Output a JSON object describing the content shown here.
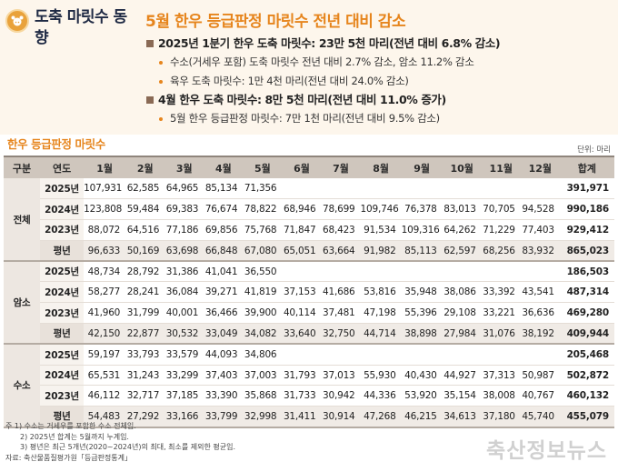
{
  "side_title": "도축 마릿수 동향",
  "main_title": "5월 한우 등급판정 마릿수 전년 대비 감소",
  "bullets": [
    {
      "level": 1,
      "text": "2025년 1분기 한우 도축 마릿수: 23만 5천 마리(전년 대비 6.8% 감소)"
    },
    {
      "level": 2,
      "text": "수소(거세우 포함) 도축 마릿수 전년 대비 2.7% 감소, 암소 11.2% 감소"
    },
    {
      "level": 2,
      "text": "육우 도축 마릿수: 1만 4천 마리(전년 대비 24.0% 감소)"
    },
    {
      "level": 1,
      "text": "4월 한우 도축 마릿수: 8만 5천 마리(전년 대비 11.0% 증가)"
    },
    {
      "level": 2,
      "text": "5월 한우 등급판정 마릿수: 7만 1천 마리(전년 대비 9.5% 감소)"
    }
  ],
  "table": {
    "title": "한우 등급판정 마릿수",
    "unit": "단위: 마리",
    "headers": [
      "구분",
      "연도",
      "1월",
      "2월",
      "3월",
      "4월",
      "5월",
      "6월",
      "7월",
      "8월",
      "9월",
      "10월",
      "11월",
      "12월",
      "합계"
    ],
    "groups": [
      {
        "category": "전체",
        "rows": [
          {
            "year": "2025년",
            "values": [
              "107,931",
              "62,585",
              "64,965",
              "85,134",
              "71,356",
              "",
              "",
              "",
              "",
              "",
              "",
              ""
            ],
            "total": "391,971"
          },
          {
            "year": "2024년",
            "values": [
              "123,808",
              "59,484",
              "69,383",
              "76,674",
              "78,822",
              "68,946",
              "78,699",
              "109,746",
              "76,378",
              "83,013",
              "70,705",
              "94,528"
            ],
            "total": "990,186"
          },
          {
            "year": "2023년",
            "values": [
              "88,072",
              "64,516",
              "77,186",
              "69,856",
              "75,768",
              "71,847",
              "68,423",
              "91,534",
              "109,316",
              "64,262",
              "71,229",
              "77,403"
            ],
            "total": "929,412"
          },
          {
            "year": "평년",
            "values": [
              "96,633",
              "50,169",
              "63,698",
              "66,848",
              "67,080",
              "65,051",
              "63,664",
              "91,982",
              "85,113",
              "62,597",
              "68,256",
              "83,932"
            ],
            "total": "865,023"
          }
        ]
      },
      {
        "category": "암소",
        "rows": [
          {
            "year": "2025년",
            "values": [
              "48,734",
              "28,792",
              "31,386",
              "41,041",
              "36,550",
              "",
              "",
              "",
              "",
              "",
              "",
              ""
            ],
            "total": "186,503"
          },
          {
            "year": "2024년",
            "values": [
              "58,277",
              "28,241",
              "36,084",
              "39,271",
              "41,819",
              "37,153",
              "41,686",
              "53,816",
              "35,948",
              "38,086",
              "33,392",
              "43,541"
            ],
            "total": "487,314"
          },
          {
            "year": "2023년",
            "values": [
              "41,960",
              "31,799",
              "40,001",
              "36,466",
              "39,900",
              "40,114",
              "37,481",
              "47,198",
              "55,396",
              "29,108",
              "33,221",
              "36,636"
            ],
            "total": "469,280"
          },
          {
            "year": "평년",
            "values": [
              "42,150",
              "22,877",
              "30,532",
              "33,049",
              "34,082",
              "33,640",
              "32,750",
              "44,714",
              "38,898",
              "27,984",
              "31,076",
              "38,192"
            ],
            "total": "409,944"
          }
        ]
      },
      {
        "category": "수소",
        "rows": [
          {
            "year": "2025년",
            "values": [
              "59,197",
              "33,793",
              "33,579",
              "44,093",
              "34,806",
              "",
              "",
              "",
              "",
              "",
              "",
              ""
            ],
            "total": "205,468"
          },
          {
            "year": "2024년",
            "values": [
              "65,531",
              "31,243",
              "33,299",
              "37,403",
              "37,003",
              "31,793",
              "37,013",
              "55,930",
              "40,430",
              "44,927",
              "37,313",
              "50,987"
            ],
            "total": "502,872"
          },
          {
            "year": "2023년",
            "values": [
              "46,112",
              "32,717",
              "37,185",
              "33,390",
              "35,868",
              "31,733",
              "30,942",
              "44,336",
              "53,920",
              "35,154",
              "38,008",
              "40,767"
            ],
            "total": "460,132"
          },
          {
            "year": "평년",
            "values": [
              "54,483",
              "27,292",
              "33,166",
              "33,799",
              "32,998",
              "31,411",
              "30,914",
              "47,268",
              "46,215",
              "34,613",
              "37,180",
              "45,740"
            ],
            "total": "455,079"
          }
        ]
      }
    ]
  },
  "notes": [
    "주  1) 수소는 거세우를 포함한 수소 전체임.",
    "2) 2025년 합계는 5월까지 누계임.",
    "3) 평년은 최근 5개년(2020~2024년)의 최대, 최소를 제외한 평균임.",
    "자료: 축산물품질평가원「등급판정통계」"
  ],
  "watermark": "축산정보뉴스",
  "colors": {
    "accent": "#e6851d",
    "header_bg": "#fdf6ec",
    "table_header": "#cfc6bd",
    "bullet_square": "#8a6a55"
  },
  "icons": {
    "logo": "cow-badge-icon"
  }
}
